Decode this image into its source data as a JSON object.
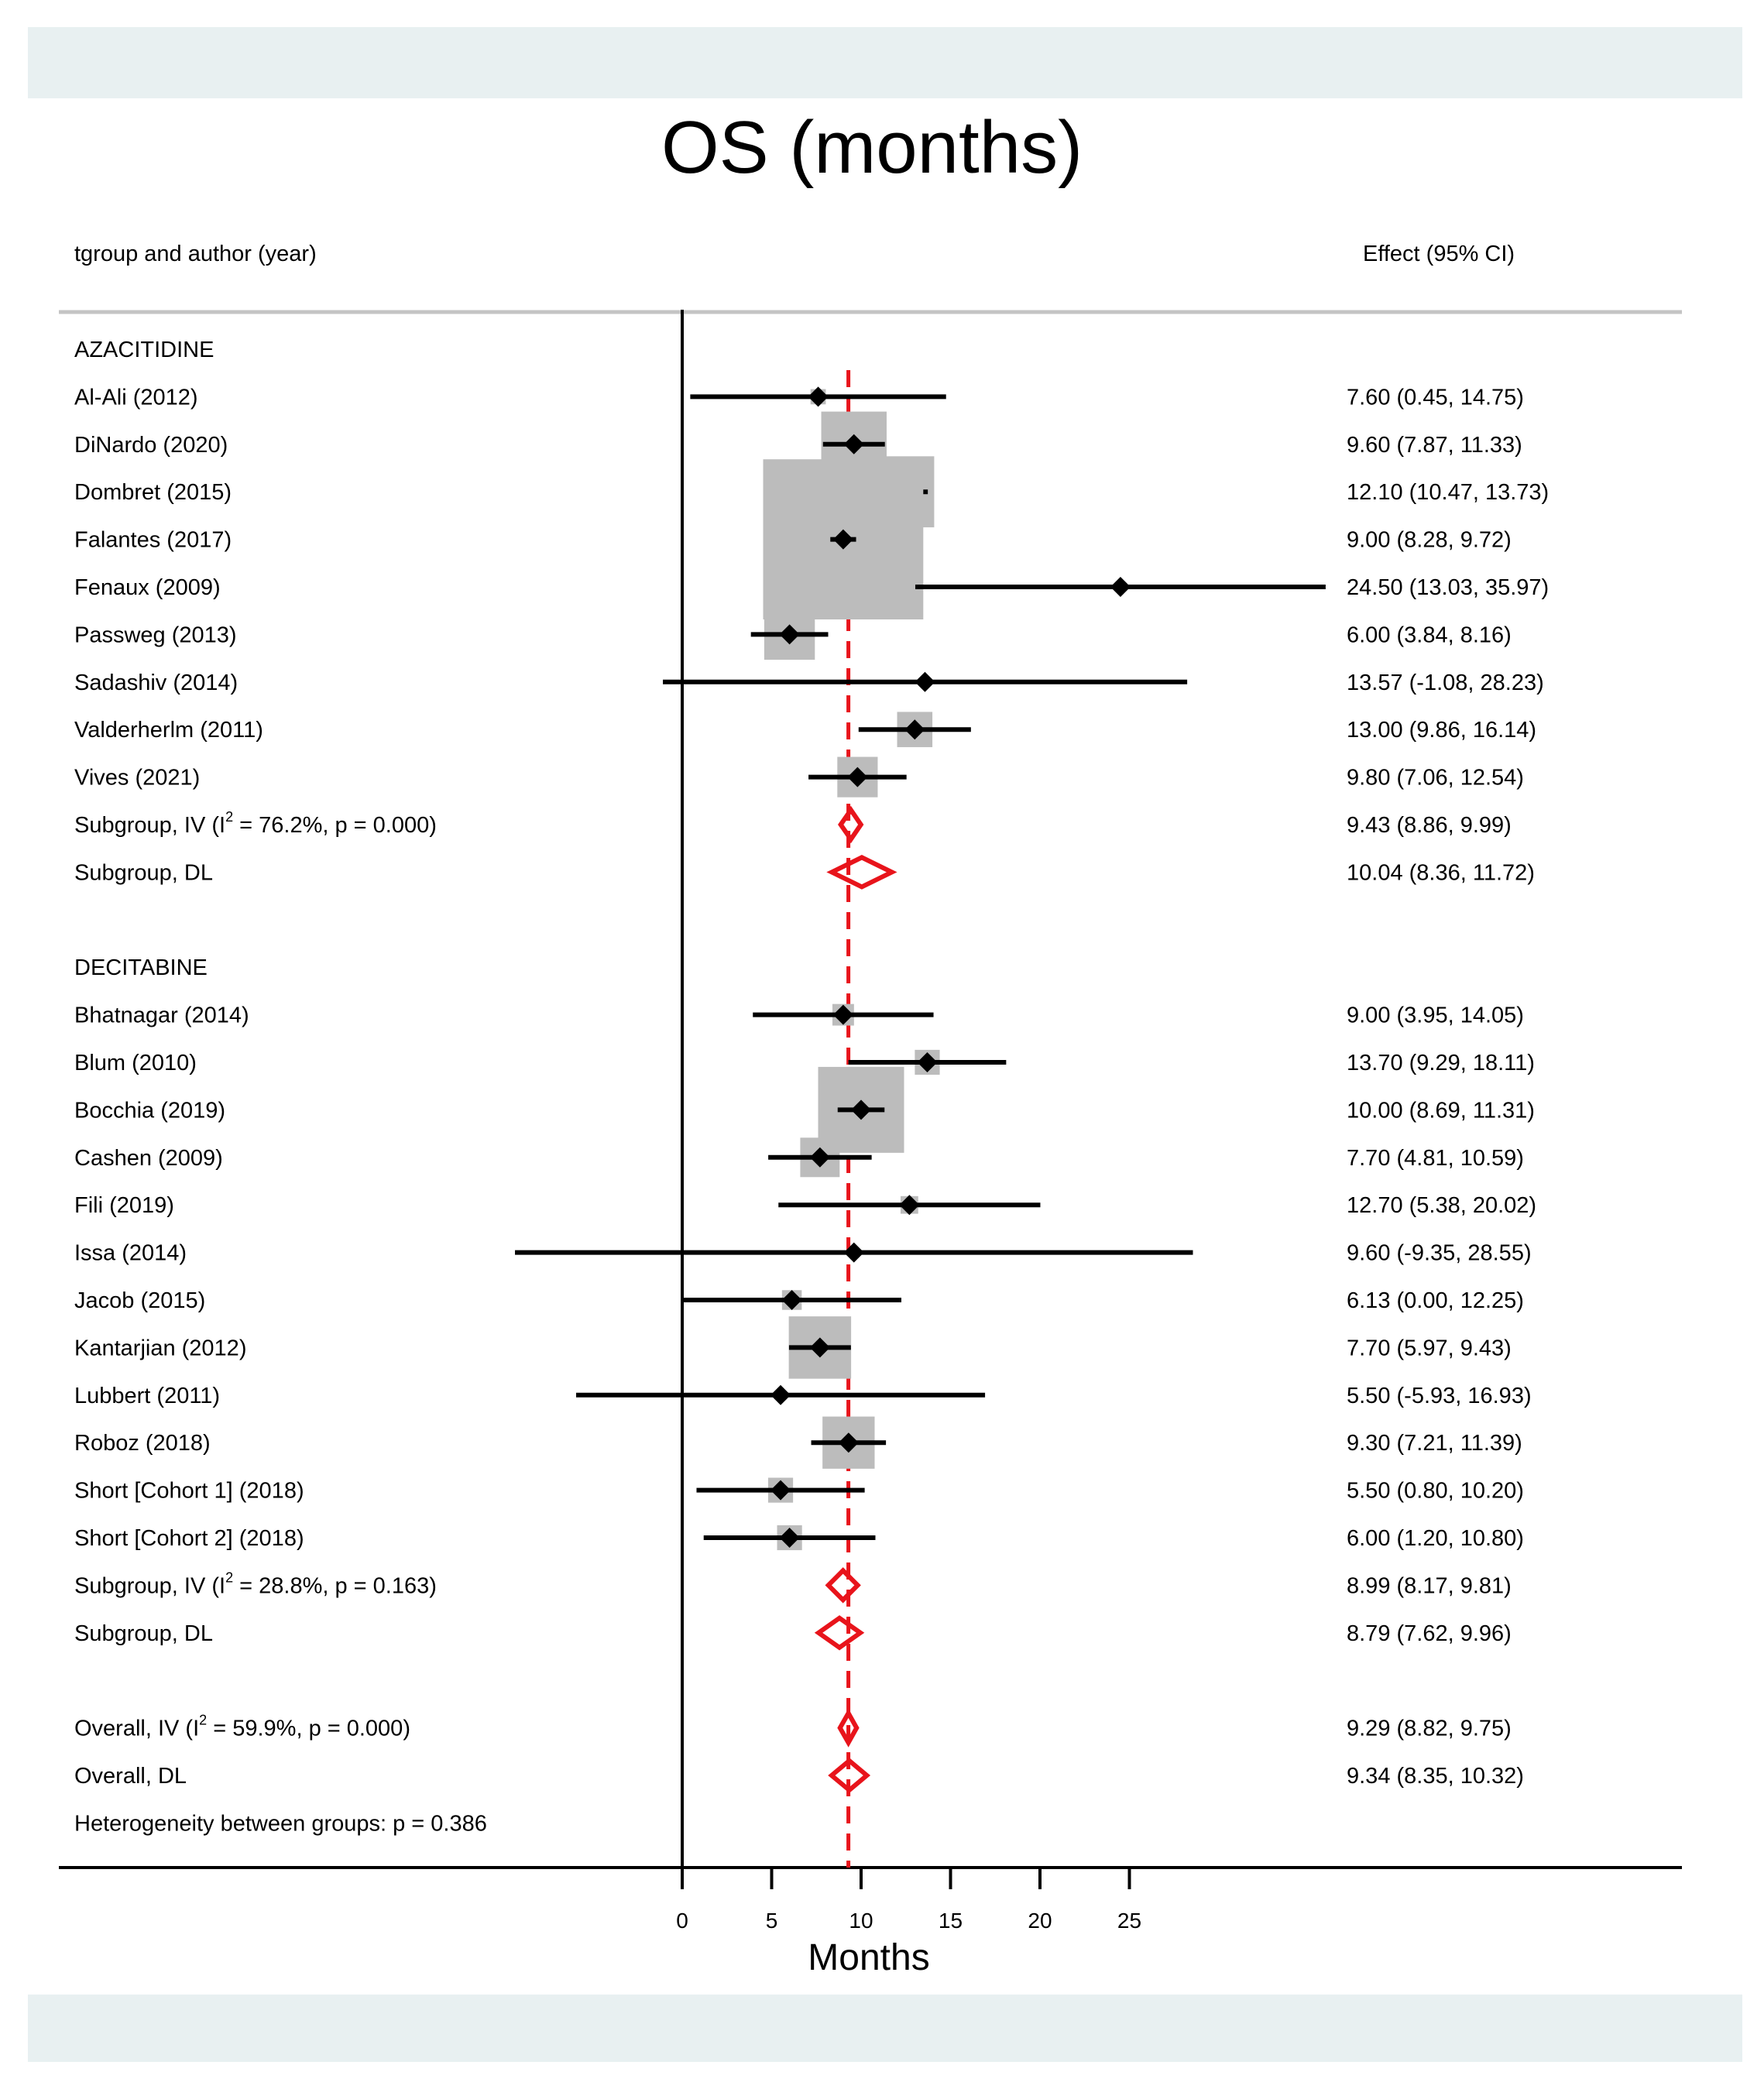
{
  "chart_data": {
    "type": "forest",
    "title": "OS (months)",
    "column_header_left": "tgroup and author (year)",
    "column_header_right": "Effect (95% CI)",
    "xlabel": "Months",
    "x_ticks": [
      0,
      5,
      10,
      15,
      20,
      25
    ],
    "xlim": [
      -10,
      36
    ],
    "reference_line": 9.29,
    "reference_color": "#e8141b",
    "rows": [
      {
        "kind": "header",
        "label": "AZACITIDINE"
      },
      {
        "kind": "study",
        "label": "Al-Ali (2012)",
        "est": 7.6,
        "lo": 0.45,
        "hi": 14.75,
        "weight": 0.3,
        "ci_text": "7.60 (0.45, 14.75)"
      },
      {
        "kind": "study",
        "label": "DiNardo (2020)",
        "est": 9.6,
        "lo": 7.87,
        "hi": 11.33,
        "weight": 5.5,
        "ci_text": "9.60 (7.87, 11.33)"
      },
      {
        "kind": "study",
        "label": "Dombret (2015)",
        "est": 12.1,
        "lo": 10.47,
        "hi": 13.73,
        "weight": 6.5,
        "ci_text": "12.10 (10.47, 13.73)"
      },
      {
        "kind": "study",
        "label": "Falantes (2017)",
        "est": 9.0,
        "lo": 8.28,
        "hi": 9.72,
        "weight": 33.0,
        "ci_text": "9.00 (8.28, 9.72)"
      },
      {
        "kind": "study",
        "label": "Fenaux (2009)",
        "est": 24.5,
        "lo": 13.03,
        "hi": 35.97,
        "weight": 0.1,
        "ci_text": "24.50 (13.03, 35.97)"
      },
      {
        "kind": "study",
        "label": "Passweg (2013)",
        "est": 6.0,
        "lo": 3.84,
        "hi": 8.16,
        "weight": 3.3,
        "ci_text": "6.00 (3.84, 8.16)"
      },
      {
        "kind": "study",
        "label": "Sadashiv (2014)",
        "est": 13.57,
        "lo": -1.08,
        "hi": 28.23,
        "weight": 0.1,
        "ci_text": "13.57 (-1.08, 28.23)"
      },
      {
        "kind": "study",
        "label": "Valderherlm (2011)",
        "est": 13.0,
        "lo": 9.86,
        "hi": 16.14,
        "weight": 1.6,
        "ci_text": "13.00 (9.86, 16.14)"
      },
      {
        "kind": "study",
        "label": "Vives (2021)",
        "est": 9.8,
        "lo": 7.06,
        "hi": 12.54,
        "weight": 2.1,
        "ci_text": "9.80 (7.06, 12.54)"
      },
      {
        "kind": "diamond",
        "label": "Subgroup, IV (I² = 76.2%, p = 0.000)",
        "label_pre": "Subgroup, IV (I",
        "label_sup": "2",
        "label_post": " = 76.2%, p = 0.000)",
        "est": 9.43,
        "lo": 8.86,
        "hi": 9.99,
        "ci_text": "9.43 (8.86, 9.99)"
      },
      {
        "kind": "diamond",
        "label": "Subgroup, DL",
        "est": 10.04,
        "lo": 8.36,
        "hi": 11.72,
        "ci_text": "10.04 (8.36, 11.72)"
      },
      {
        "kind": "blank"
      },
      {
        "kind": "header",
        "label": "DECITABINE"
      },
      {
        "kind": "study",
        "label": "Bhatnagar (2014)",
        "est": 9.0,
        "lo": 3.95,
        "hi": 14.05,
        "weight": 0.6,
        "ci_text": "9.00 (3.95, 14.05)"
      },
      {
        "kind": "study",
        "label": "Blum (2010)",
        "est": 13.7,
        "lo": 9.29,
        "hi": 18.11,
        "weight": 0.8,
        "ci_text": "13.70 (9.29, 18.11)"
      },
      {
        "kind": "study",
        "label": "Bocchia (2019)",
        "est": 10.0,
        "lo": 8.69,
        "hi": 11.31,
        "weight": 9.5,
        "ci_text": "10.00 (8.69, 11.31)"
      },
      {
        "kind": "study",
        "label": "Cashen (2009)",
        "est": 7.7,
        "lo": 4.81,
        "hi": 10.59,
        "weight": 2.0,
        "ci_text": "7.70 (4.81, 10.59)"
      },
      {
        "kind": "study",
        "label": "Fili (2019)",
        "est": 12.7,
        "lo": 5.38,
        "hi": 20.02,
        "weight": 0.4,
        "ci_text": "12.70 (5.38, 20.02)"
      },
      {
        "kind": "study",
        "label": "Issa (2014)",
        "est": 9.6,
        "lo": -9.35,
        "hi": 28.55,
        "weight": 0.1,
        "ci_text": "9.60 (-9.35, 28.55)"
      },
      {
        "kind": "study",
        "label": "Jacob (2015)",
        "est": 6.13,
        "lo": 0.0,
        "hi": 12.25,
        "weight": 0.5,
        "ci_text": "6.13 (0.00, 12.25)"
      },
      {
        "kind": "study",
        "label": "Kantarjian (2012)",
        "est": 7.7,
        "lo": 5.97,
        "hi": 9.43,
        "weight": 5.0,
        "ci_text": "7.70 (5.97, 9.43)"
      },
      {
        "kind": "study",
        "label": "Lubbert (2011)",
        "est": 5.5,
        "lo": -5.93,
        "hi": 16.93,
        "weight": 0.1,
        "ci_text": "5.50 (-5.93, 16.93)"
      },
      {
        "kind": "study",
        "label": "Roboz (2018)",
        "est": 9.3,
        "lo": 7.21,
        "hi": 11.39,
        "weight": 3.5,
        "ci_text": "9.30 (7.21, 11.39)"
      },
      {
        "kind": "study",
        "label": "Short [Cohort 1] (2018)",
        "est": 5.5,
        "lo": 0.8,
        "hi": 10.2,
        "weight": 0.8,
        "ci_text": "5.50 (0.80, 10.20)"
      },
      {
        "kind": "study",
        "label": "Short [Cohort 2] (2018)",
        "est": 6.0,
        "lo": 1.2,
        "hi": 10.8,
        "weight": 0.8,
        "ci_text": "6.00 (1.20, 10.80)"
      },
      {
        "kind": "diamond",
        "label": "Subgroup, IV (I² = 28.8%, p = 0.163)",
        "label_pre": "Subgroup, IV (I",
        "label_sup": "2",
        "label_post": " = 28.8%, p = 0.163)",
        "est": 8.99,
        "lo": 8.17,
        "hi": 9.81,
        "ci_text": "8.99 (8.17, 9.81)"
      },
      {
        "kind": "diamond",
        "label": "Subgroup, DL",
        "est": 8.79,
        "lo": 7.62,
        "hi": 9.96,
        "ci_text": "8.79 (7.62, 9.96)"
      },
      {
        "kind": "blank"
      },
      {
        "kind": "diamond",
        "label": "Overall, IV (I² = 59.9%, p = 0.000)",
        "label_pre": "Overall, IV (I",
        "label_sup": "2",
        "label_post": " = 59.9%, p = 0.000)",
        "est": 9.29,
        "lo": 8.82,
        "hi": 9.75,
        "ci_text": "9.29 (8.82, 9.75)"
      },
      {
        "kind": "diamond",
        "label": "Overall, DL",
        "est": 9.34,
        "lo": 8.35,
        "hi": 10.32,
        "ci_text": "9.34 (8.35, 10.32)"
      },
      {
        "kind": "note",
        "label": "Heterogeneity between groups: p = 0.386"
      }
    ]
  }
}
